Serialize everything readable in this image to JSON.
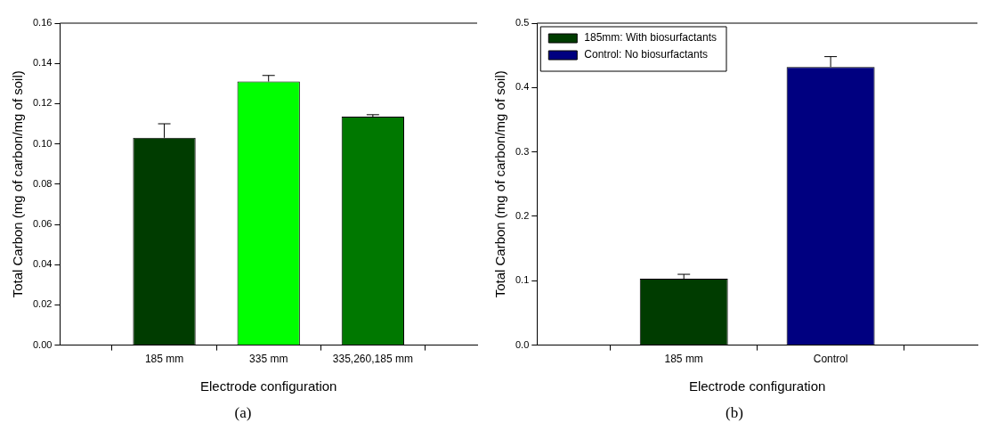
{
  "chart_data": [
    {
      "type": "bar",
      "xlabel": "Electrode configuration",
      "ylabel": "Total Carbon (mg of carbon/mg of soil)",
      "categories": [
        "185 mm",
        "335 mm",
        "335,260,185 mm"
      ],
      "series": [
        {
          "values": [
            0.103,
            0.131,
            0.1135
          ],
          "colors": [
            "#003c00",
            "#00ff00",
            "#007800"
          ],
          "errors": [
            0.007,
            0.003,
            0.001
          ]
        }
      ],
      "ylim": [
        0,
        0.16
      ],
      "yticks": [
        {
          "value": 0,
          "label": "0.00"
        },
        {
          "value": 0.02,
          "label": "0.02"
        },
        {
          "value": 0.04,
          "label": "0.04"
        },
        {
          "value": 0.06,
          "label": "0.06"
        },
        {
          "value": 0.08,
          "label": "0.08"
        },
        {
          "value": 0.1,
          "label": "0.10"
        },
        {
          "value": 0.12,
          "label": "0.12"
        },
        {
          "value": 0.14,
          "label": "0.14"
        },
        {
          "value": 0.16,
          "label": "0.16"
        }
      ],
      "annotations": [
        "(a)"
      ]
    },
    {
      "type": "bar",
      "xlabel": "Electrode configuration",
      "ylabel": "Total Carbon (mg of carbon/mg of soil)",
      "categories": [
        "185 mm",
        "Control"
      ],
      "series": [
        {
          "name": "185mm: With biosurfactants",
          "color": "#003c00",
          "values": [
            0.103,
            null
          ],
          "errors": [
            0.007,
            null
          ]
        },
        {
          "name": "Control: No biosurfactants",
          "color": "#000080",
          "values": [
            null,
            0.432
          ],
          "errors": [
            null,
            0.016
          ]
        }
      ],
      "ylim": [
        0,
        0.5
      ],
      "yticks": [
        {
          "value": 0,
          "label": "0.0"
        },
        {
          "value": 0.1,
          "label": "0.1"
        },
        {
          "value": 0.2,
          "label": "0.2"
        },
        {
          "value": 0.3,
          "label": "0.3"
        },
        {
          "value": 0.4,
          "label": "0.4"
        },
        {
          "value": 0.5,
          "label": "0.5"
        }
      ],
      "legend": "top left",
      "annotations": [
        "(b)"
      ]
    }
  ]
}
